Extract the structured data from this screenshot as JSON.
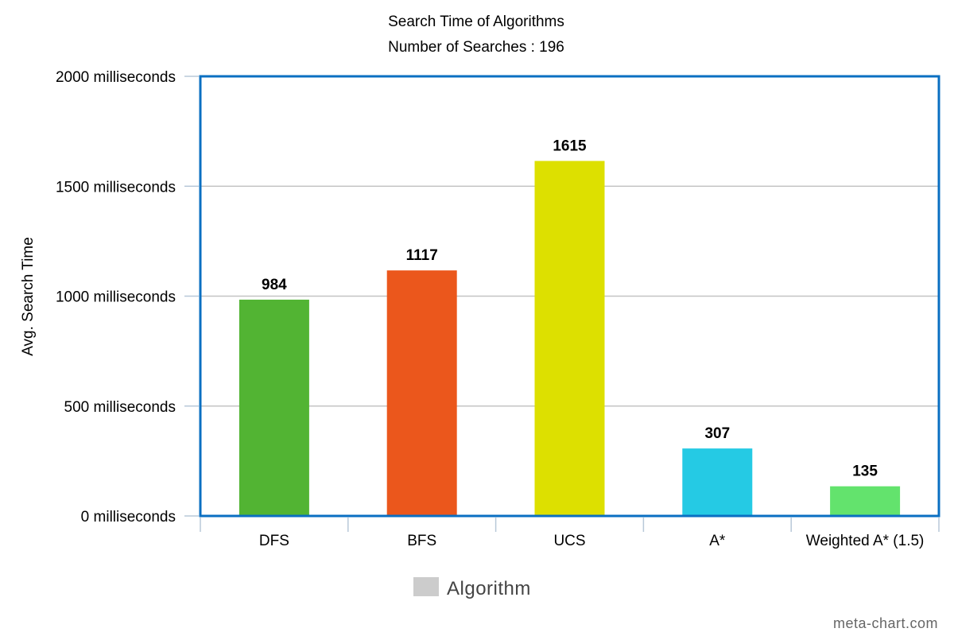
{
  "chart_data": {
    "type": "bar",
    "title": "Search Time of Algorithms",
    "subtitle": "Number of Searches : 196",
    "xlabel": "",
    "ylabel": "Avg. Search Time",
    "categories": [
      "DFS",
      "BFS",
      "UCS",
      "A*",
      "Weighted A* (1.5)"
    ],
    "series": [
      {
        "name": "Algorithm",
        "values": [
          984,
          1117,
          1615,
          307,
          135
        ]
      }
    ],
    "colors": [
      "#52b433",
      "#eb571c",
      "#dde000",
      "#25cae4",
      "#63e36d"
    ],
    "ylim": [
      0,
      2000
    ],
    "y_ticks": [
      0,
      500,
      1000,
      1500,
      2000
    ],
    "y_tick_labels": [
      "0 milliseconds",
      "500 milliseconds",
      "1000 milliseconds",
      "1500 milliseconds",
      "2000 milliseconds"
    ],
    "data_labels": [
      "984",
      "1117",
      "1615",
      "307",
      "135"
    ],
    "grid": true,
    "legend_position": "bottom-center",
    "legend_swatch_color": "#cccccc",
    "frame_color": "#0a6fc2"
  },
  "credit": "meta-chart.com"
}
